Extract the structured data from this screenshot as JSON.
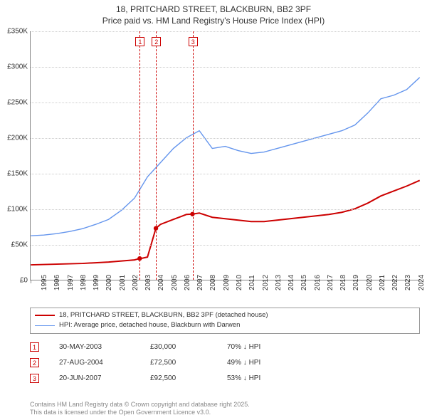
{
  "title": {
    "line1": "18, PRITCHARD STREET, BLACKBURN, BB2 3PF",
    "line2": "Price paid vs. HM Land Registry's House Price Index (HPI)"
  },
  "chart": {
    "type": "line",
    "background_color": "#ffffff",
    "grid_color": "#cccccc",
    "axis_color": "#888888",
    "x": {
      "min": 1995,
      "max": 2025,
      "tick_step": 1
    },
    "y": {
      "min": 0,
      "max": 350000,
      "tick_step": 50000,
      "tick_prefix": "£",
      "tick_suffix": "K",
      "tick_divide": 1000
    },
    "series": [
      {
        "key": "price_paid",
        "label": "18, PRITCHARD STREET, BLACKBURN, BB2 3PF (detached house)",
        "color": "#cc0000",
        "width": 2,
        "points": [
          [
            1995,
            21000
          ],
          [
            1996,
            21500
          ],
          [
            1997,
            22000
          ],
          [
            1998,
            22500
          ],
          [
            1999,
            23000
          ],
          [
            2000,
            24000
          ],
          [
            2001,
            25000
          ],
          [
            2002,
            26500
          ],
          [
            2003,
            28000
          ],
          [
            2003.4,
            30000
          ],
          [
            2003.5,
            30000
          ],
          [
            2004,
            32000
          ],
          [
            2004.65,
            72500
          ],
          [
            2005,
            78000
          ],
          [
            2006,
            85000
          ],
          [
            2007,
            92000
          ],
          [
            2007.47,
            92500
          ],
          [
            2008,
            94000
          ],
          [
            2009,
            88000
          ],
          [
            2010,
            86000
          ],
          [
            2011,
            84000
          ],
          [
            2012,
            82000
          ],
          [
            2013,
            82000
          ],
          [
            2014,
            84000
          ],
          [
            2015,
            86000
          ],
          [
            2016,
            88000
          ],
          [
            2017,
            90000
          ],
          [
            2018,
            92000
          ],
          [
            2019,
            95000
          ],
          [
            2020,
            100000
          ],
          [
            2021,
            108000
          ],
          [
            2022,
            118000
          ],
          [
            2023,
            125000
          ],
          [
            2024,
            132000
          ],
          [
            2025,
            140000
          ]
        ]
      },
      {
        "key": "hpi",
        "label": "HPI: Average price, detached house, Blackburn with Darwen",
        "color": "#6495ed",
        "width": 1.4,
        "points": [
          [
            1995,
            62000
          ],
          [
            1996,
            63000
          ],
          [
            1997,
            65000
          ],
          [
            1998,
            68000
          ],
          [
            1999,
            72000
          ],
          [
            2000,
            78000
          ],
          [
            2001,
            85000
          ],
          [
            2002,
            98000
          ],
          [
            2003,
            115000
          ],
          [
            2004,
            145000
          ],
          [
            2005,
            165000
          ],
          [
            2006,
            185000
          ],
          [
            2007,
            200000
          ],
          [
            2008,
            210000
          ],
          [
            2009,
            185000
          ],
          [
            2010,
            188000
          ],
          [
            2011,
            182000
          ],
          [
            2012,
            178000
          ],
          [
            2013,
            180000
          ],
          [
            2014,
            185000
          ],
          [
            2015,
            190000
          ],
          [
            2016,
            195000
          ],
          [
            2017,
            200000
          ],
          [
            2018,
            205000
          ],
          [
            2019,
            210000
          ],
          [
            2020,
            218000
          ],
          [
            2021,
            235000
          ],
          [
            2022,
            255000
          ],
          [
            2023,
            260000
          ],
          [
            2024,
            268000
          ],
          [
            2025,
            285000
          ]
        ]
      }
    ],
    "markers": [
      {
        "n": "1",
        "x": 2003.4
      },
      {
        "n": "2",
        "x": 2004.65
      },
      {
        "n": "3",
        "x": 2007.47
      }
    ],
    "sale_points": [
      {
        "x": 2003.4,
        "y": 30000
      },
      {
        "x": 2004.65,
        "y": 72500
      },
      {
        "x": 2007.47,
        "y": 92500
      }
    ]
  },
  "sales": [
    {
      "n": "1",
      "date": "30-MAY-2003",
      "price": "£30,000",
      "hpi": "70% ↓ HPI"
    },
    {
      "n": "2",
      "date": "27-AUG-2004",
      "price": "£72,500",
      "hpi": "49% ↓ HPI"
    },
    {
      "n": "3",
      "date": "20-JUN-2007",
      "price": "£92,500",
      "hpi": "53% ↓ HPI"
    }
  ],
  "footer": {
    "line1": "Contains HM Land Registry data © Crown copyright and database right 2025.",
    "line2": "This data is licensed under the Open Government Licence v3.0."
  }
}
